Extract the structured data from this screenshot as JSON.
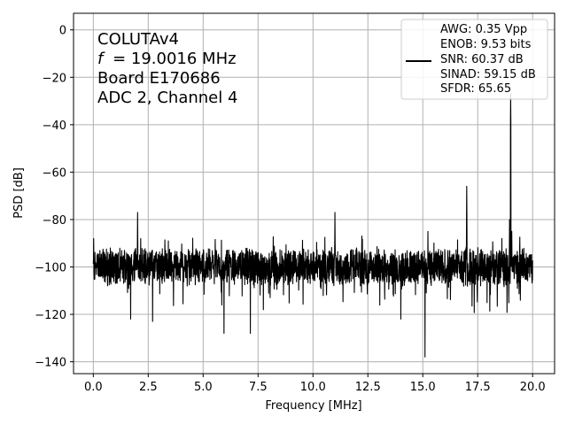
{
  "chart_data": {
    "type": "line",
    "xlabel": "Frequency [MHz]",
    "ylabel": "PSD [dB]",
    "xlim": [
      -0.9,
      21.0
    ],
    "ylim": [
      -145,
      7
    ],
    "xticks": [
      0.0,
      2.5,
      5.0,
      7.5,
      10.0,
      12.5,
      15.0,
      17.5,
      20.0
    ],
    "xtick_labels": [
      "0.0",
      "2.5",
      "5.0",
      "7.5",
      "10.0",
      "12.5",
      "15.0",
      "17.5",
      "20.0"
    ],
    "yticks": [
      0,
      -20,
      -40,
      -60,
      -80,
      -100,
      -120,
      -140
    ],
    "ytick_labels": [
      "0",
      "−20",
      "−40",
      "−60",
      "−80",
      "−100",
      "−120",
      "−140"
    ],
    "grid": true,
    "legend_position": "top-right",
    "annotation_lines": [
      "COLUTAv4",
      "= 19.0016 MHz",
      "Board E170686",
      "ADC 2, Channel 4"
    ],
    "annotation_italic_prefix": "f",
    "legend_lines": [
      "AWG: 0.35 Vpp",
      "ENOB: 9.53 bits",
      "SNR: 60.37 dB",
      "SINAD: 59.15 dB",
      "SFDR: 65.65"
    ],
    "series_color": "#000000",
    "noise_floor_db": -100,
    "noise_spread_db": 6,
    "peaks": [
      {
        "x": 0.02,
        "y": -88
      },
      {
        "x": 2.02,
        "y": -77
      },
      {
        "x": 11.0,
        "y": -77
      },
      {
        "x": 15.1,
        "y": -138
      },
      {
        "x": 17.0,
        "y": -66
      },
      {
        "x": 18.6,
        "y": -88
      },
      {
        "x": 18.95,
        "y": -80
      },
      {
        "x": 19.0016,
        "y": -27
      },
      {
        "x": 19.05,
        "y": -85
      }
    ],
    "dips": [
      {
        "x": 2.7,
        "y": -123
      },
      {
        "x": 5.95,
        "y": -128
      },
      {
        "x": 7.15,
        "y": -128
      },
      {
        "x": 1.7,
        "y": -122
      },
      {
        "x": 14.0,
        "y": -122
      }
    ]
  }
}
